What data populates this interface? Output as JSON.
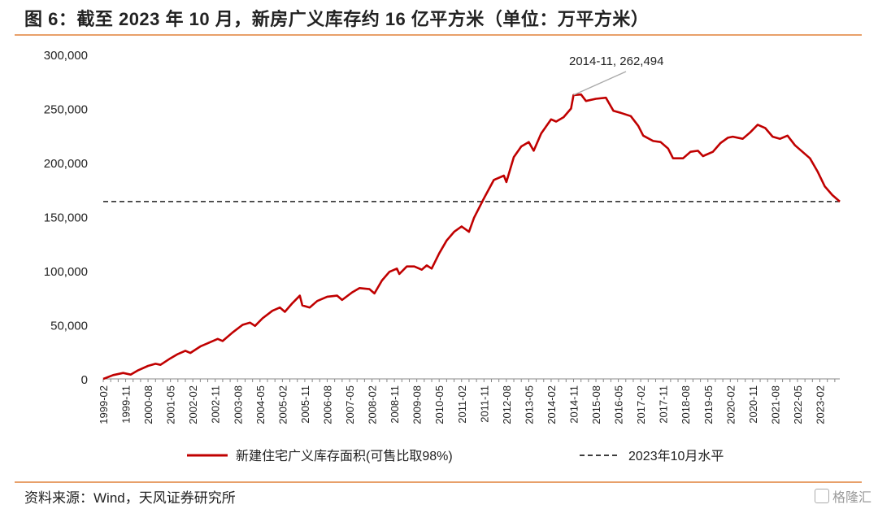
{
  "header": {
    "title": "图 6：截至 2023 年 10 月，新房广义库存约 16 亿平方米（单位：万平方米）"
  },
  "footer": {
    "source": "资料来源：Wind，天风证券研究所",
    "watermark": "格隆汇"
  },
  "colors": {
    "accent_rule": "#E8A06A",
    "series_line": "#C00000",
    "reference_line": "#222222"
  },
  "icons": {
    "watermark_logo": "square-logo-icon"
  },
  "chart_data": {
    "type": "line",
    "title": "",
    "xlabel": "",
    "ylabel": "",
    "ylim": [
      0,
      300000
    ],
    "yticks": [
      0,
      50000,
      100000,
      150000,
      200000,
      250000,
      300000
    ],
    "ytick_labels": [
      "0",
      "50,000",
      "100,000",
      "150,000",
      "200,000",
      "250,000",
      "300,000"
    ],
    "x_start": "1999-02",
    "x_end": "2023-10",
    "xtick_labels": [
      "1999-02",
      "1999-11",
      "2000-08",
      "2001-05",
      "2002-02",
      "2002-11",
      "2003-08",
      "2004-05",
      "2005-02",
      "2005-11",
      "2006-08",
      "2007-05",
      "2008-02",
      "2008-11",
      "2009-08",
      "2010-05",
      "2011-02",
      "2011-11",
      "2012-08",
      "2013-05",
      "2014-02",
      "2014-11",
      "2015-08",
      "2016-05",
      "2017-02",
      "2017-11",
      "2018-08",
      "2019-05",
      "2020-02",
      "2020-11",
      "2021-08",
      "2022-05",
      "2023-02"
    ],
    "grid": false,
    "legend": "bottom",
    "series": [
      {
        "name": "新建住宅广义库存面积(可售比取98%)",
        "color": "#C00000",
        "points": [
          [
            "1999-02",
            0
          ],
          [
            "1999-06",
            3500
          ],
          [
            "1999-10",
            5500
          ],
          [
            "2000-01",
            4000
          ],
          [
            "2000-04",
            8000
          ],
          [
            "2000-08",
            12000
          ],
          [
            "2000-11",
            14000
          ],
          [
            "2001-01",
            13000
          ],
          [
            "2001-05",
            19000
          ],
          [
            "2001-08",
            23000
          ],
          [
            "2001-11",
            26000
          ],
          [
            "2002-01",
            24000
          ],
          [
            "2002-05",
            30000
          ],
          [
            "2002-09",
            34000
          ],
          [
            "2002-12",
            37000
          ],
          [
            "2003-02",
            35000
          ],
          [
            "2003-06",
            43000
          ],
          [
            "2003-10",
            50000
          ],
          [
            "2004-01",
            52000
          ],
          [
            "2004-03",
            49000
          ],
          [
            "2004-06",
            56000
          ],
          [
            "2004-10",
            63000
          ],
          [
            "2005-01",
            66000
          ],
          [
            "2005-03",
            62000
          ],
          [
            "2005-06",
            70000
          ],
          [
            "2005-09",
            77000
          ],
          [
            "2005-10",
            68000
          ],
          [
            "2006-01",
            66000
          ],
          [
            "2006-04",
            72000
          ],
          [
            "2006-08",
            76000
          ],
          [
            "2006-12",
            77000
          ],
          [
            "2007-02",
            73000
          ],
          [
            "2007-06",
            80000
          ],
          [
            "2007-09",
            84000
          ],
          [
            "2008-01",
            83000
          ],
          [
            "2008-03",
            79000
          ],
          [
            "2008-06",
            91000
          ],
          [
            "2008-09",
            99000
          ],
          [
            "2008-12",
            102000
          ],
          [
            "2009-01",
            97000
          ],
          [
            "2009-04",
            104000
          ],
          [
            "2009-07",
            104000
          ],
          [
            "2009-10",
            101000
          ],
          [
            "2009-12",
            105000
          ],
          [
            "2010-02",
            102000
          ],
          [
            "2010-05",
            116000
          ],
          [
            "2010-08",
            128000
          ],
          [
            "2010-11",
            136000
          ],
          [
            "2011-02",
            141000
          ],
          [
            "2011-05",
            136000
          ],
          [
            "2011-07",
            149000
          ],
          [
            "2011-11",
            167000
          ],
          [
            "2012-03",
            184000
          ],
          [
            "2012-07",
            188000
          ],
          [
            "2012-08",
            182000
          ],
          [
            "2012-11",
            205000
          ],
          [
            "2013-02",
            215000
          ],
          [
            "2013-05",
            219000
          ],
          [
            "2013-07",
            211000
          ],
          [
            "2013-10",
            227000
          ],
          [
            "2014-02",
            240000
          ],
          [
            "2014-04",
            238000
          ],
          [
            "2014-07",
            242000
          ],
          [
            "2014-10",
            250000
          ],
          [
            "2014-11",
            262494
          ],
          [
            "2015-02",
            263000
          ],
          [
            "2015-04",
            257000
          ],
          [
            "2015-08",
            259000
          ],
          [
            "2015-12",
            260000
          ],
          [
            "2016-03",
            248000
          ],
          [
            "2016-06",
            246000
          ],
          [
            "2016-10",
            243000
          ],
          [
            "2017-01",
            234000
          ],
          [
            "2017-03",
            225000
          ],
          [
            "2017-07",
            220000
          ],
          [
            "2017-10",
            219000
          ],
          [
            "2018-01",
            213000
          ],
          [
            "2018-03",
            204000
          ],
          [
            "2018-07",
            204000
          ],
          [
            "2018-10",
            210000
          ],
          [
            "2019-01",
            211000
          ],
          [
            "2019-03",
            206000
          ],
          [
            "2019-07",
            210000
          ],
          [
            "2019-10",
            218000
          ],
          [
            "2020-01",
            223000
          ],
          [
            "2020-03",
            224000
          ],
          [
            "2020-07",
            222000
          ],
          [
            "2020-10",
            228000
          ],
          [
            "2021-01",
            235000
          ],
          [
            "2021-04",
            232000
          ],
          [
            "2021-07",
            224000
          ],
          [
            "2021-10",
            222000
          ],
          [
            "2022-01",
            225000
          ],
          [
            "2022-04",
            216000
          ],
          [
            "2022-07",
            210000
          ],
          [
            "2022-10",
            204000
          ],
          [
            "2023-01",
            192000
          ],
          [
            "2023-04",
            178000
          ],
          [
            "2023-07",
            170000
          ],
          [
            "2023-10",
            164000
          ]
        ]
      },
      {
        "name": "2023年10月水平",
        "constant": 164000,
        "color": "#222222",
        "style": "dashed"
      }
    ],
    "annotations": [
      {
        "x": "2014-11",
        "y": 262494,
        "text": "2014-11, 262,494"
      }
    ]
  }
}
